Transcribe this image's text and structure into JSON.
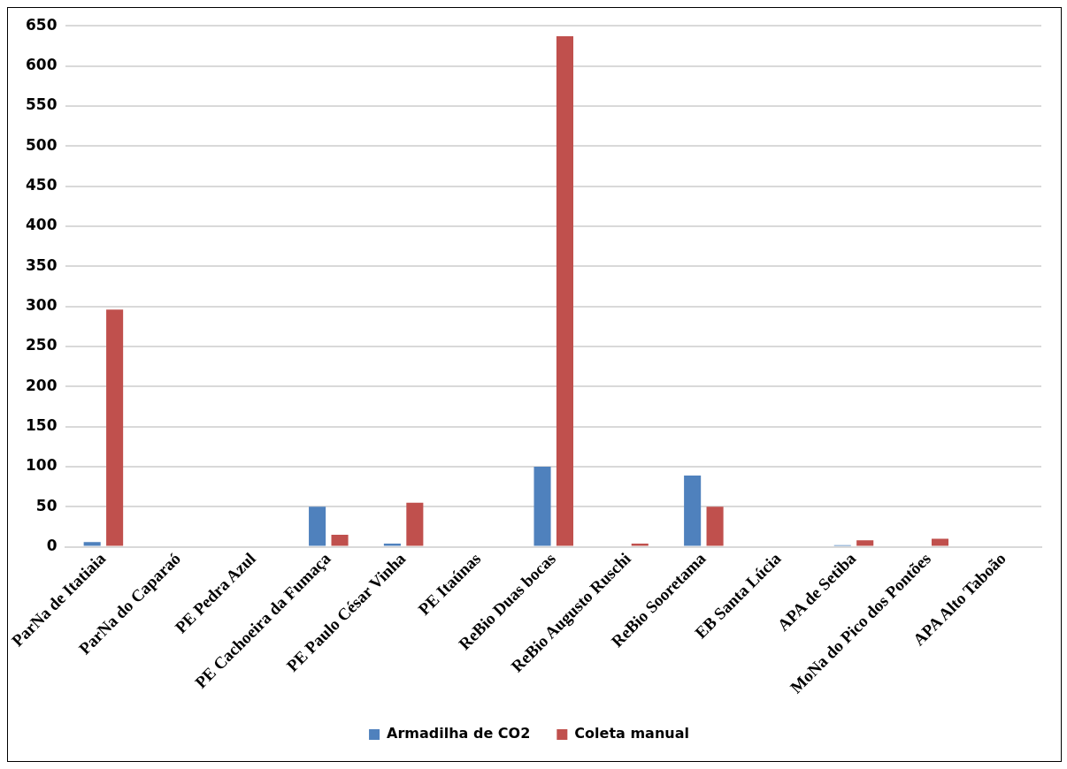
{
  "chart_data": {
    "type": "bar",
    "categories": [
      "ParNa de Itatiaia",
      "ParNa do Caparaó",
      "PE Pedra Azul",
      "PE Cachoeira da Fumaça",
      "PE Paulo César Vinha",
      "PE Itaúnas",
      "ReBio Duas bocas",
      "ReBio Augusto Ruschi",
      "ReBio Sooretama",
      "EB Santa Lúcia",
      "APA de Setiba",
      "MoNa do Pico dos Pontões",
      "APA Alto Taboão"
    ],
    "series": [
      {
        "name": "Armadilha de CO2",
        "color": "#4f81bd",
        "values": [
          6,
          0,
          0,
          50,
          4,
          0,
          100,
          0,
          89,
          0,
          2,
          0,
          0
        ]
      },
      {
        "name": "Coleta manual",
        "color": "#c0504d",
        "values": [
          296,
          0,
          0,
          15,
          55,
          0,
          637,
          4,
          50,
          0,
          8,
          10,
          0
        ]
      }
    ],
    "ylim": [
      0,
      650
    ],
    "yticks": [
      0,
      50,
      100,
      150,
      200,
      250,
      300,
      350,
      400,
      450,
      500,
      550,
      600,
      650
    ],
    "grid": "y",
    "legend": "bottom"
  }
}
